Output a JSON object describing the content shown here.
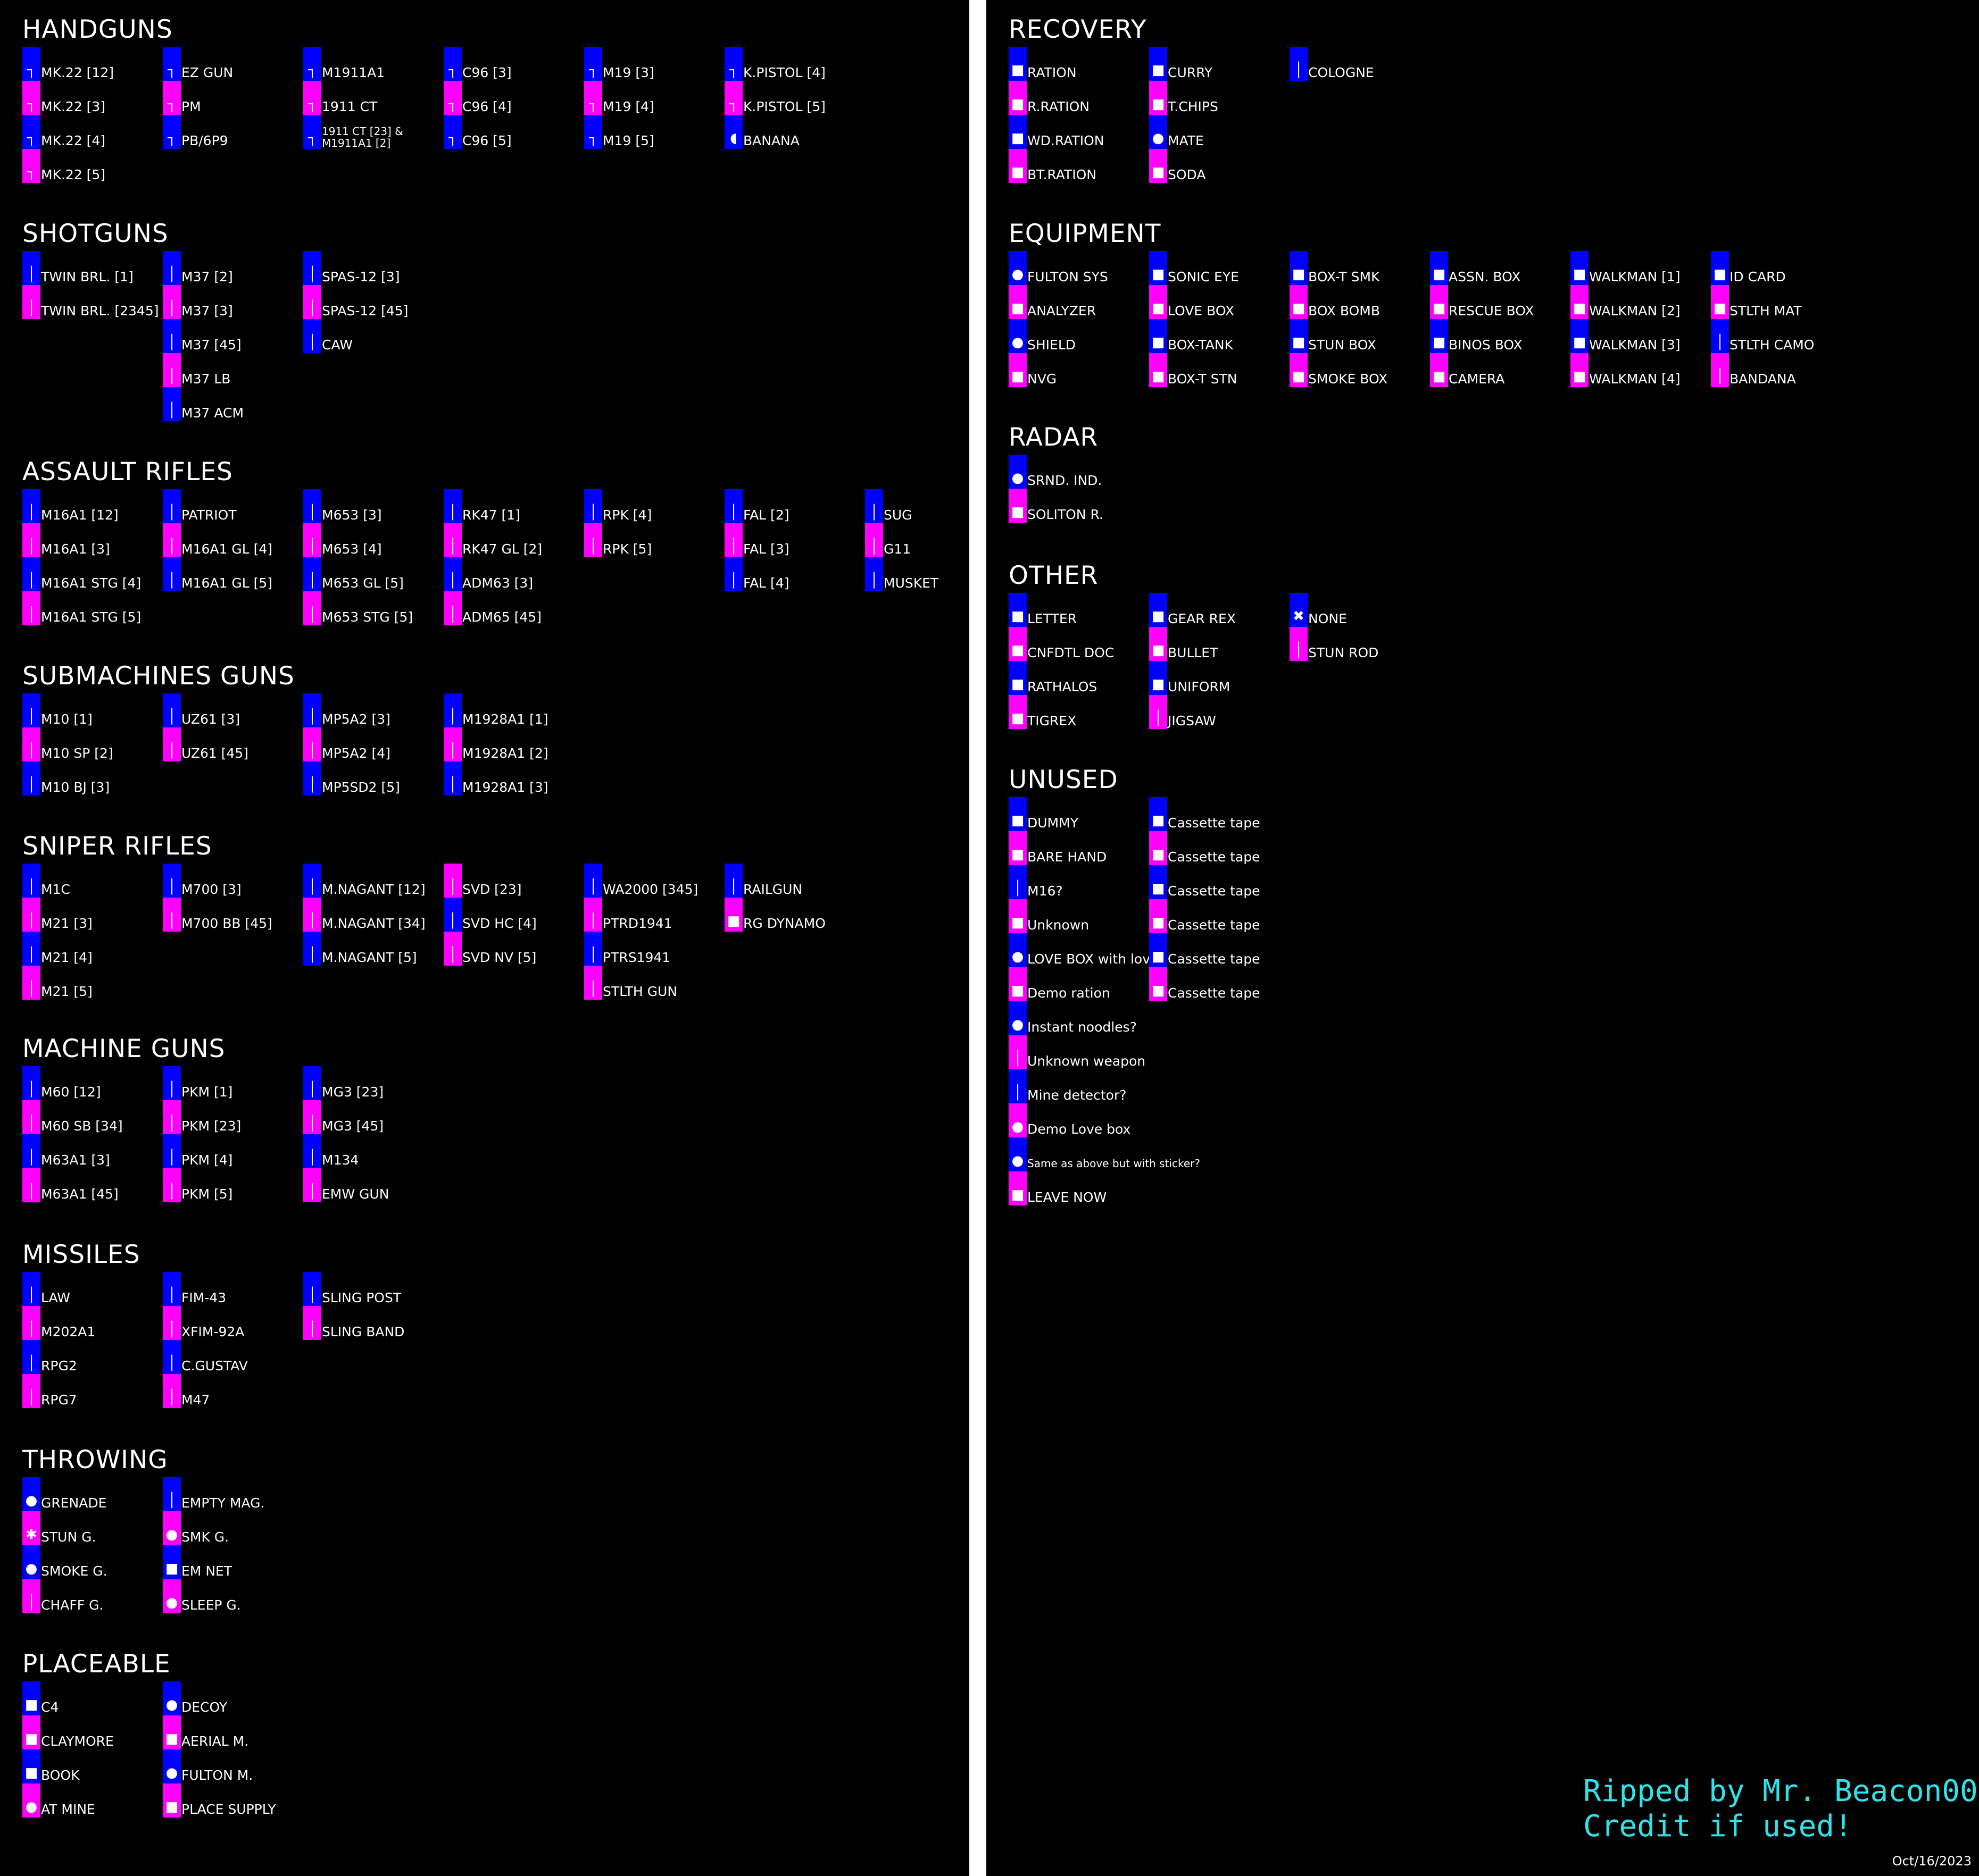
{
  "colors": {
    "blue": "#0000ff",
    "magenta": "#ff00ff",
    "background": "#000000",
    "divider": "#ffffff",
    "credit": "#2fe3ea"
  },
  "left": [
    {
      "title": "HANDGUNS",
      "columns": [
        [
          [
            "MK.22 [12]",
            "blue",
            "gun"
          ],
          [
            "MK.22 [3]",
            "magenta",
            "gun"
          ],
          [
            "MK.22 [4]",
            "blue",
            "gun"
          ],
          [
            "MK.22 [5]",
            "magenta",
            "gun"
          ]
        ],
        [
          [
            "EZ GUN",
            "blue",
            "gun"
          ],
          [
            "PM",
            "magenta",
            "gun"
          ],
          [
            "PB/6P9",
            "blue",
            "gun"
          ]
        ],
        [
          [
            "M1911A1",
            "blue",
            "gun"
          ],
          [
            "1911 CT",
            "magenta",
            "gun"
          ],
          [
            "1911 CT [23] & M1911A1 [2]",
            "blue",
            "gun"
          ]
        ],
        [
          [
            "C96 [3]",
            "blue",
            "gun"
          ],
          [
            "C96 [4]",
            "magenta",
            "gun"
          ],
          [
            "C96 [5]",
            "blue",
            "gun"
          ]
        ],
        [
          [
            "M19 [3]",
            "blue",
            "gun"
          ],
          [
            "M19 [4]",
            "magenta",
            "gun"
          ],
          [
            "M19 [5]",
            "blue",
            "gun"
          ]
        ],
        [
          [
            "K.PISTOL [4]",
            "blue",
            "gun"
          ],
          [
            "K.PISTOL [5]",
            "magenta",
            "gun"
          ],
          [
            "BANANA",
            "blue",
            "banana"
          ]
        ]
      ]
    },
    {
      "title": "SHOTGUNS",
      "columns": [
        [
          [
            "TWIN BRL. [1]",
            "blue",
            "rifle"
          ],
          [
            "TWIN BRL. [2345]",
            "magenta",
            "rifle"
          ]
        ],
        [
          [
            "M37 [2]",
            "blue",
            "rifle"
          ],
          [
            "M37 [3]",
            "magenta",
            "rifle"
          ],
          [
            "M37 [45]",
            "blue",
            "rifle"
          ],
          [
            "M37 LB",
            "magenta",
            "rifle"
          ],
          [
            "M37 ACM",
            "blue",
            "rifle"
          ]
        ],
        [
          [
            "SPAS-12 [3]",
            "blue",
            "rifle"
          ],
          [
            "SPAS-12 [45]",
            "magenta",
            "rifle"
          ],
          [
            "CAW",
            "blue",
            "rifle"
          ]
        ]
      ]
    },
    {
      "title": "ASSAULT RIFLES",
      "columns": [
        [
          [
            "M16A1 [12]",
            "blue",
            "rifle"
          ],
          [
            "M16A1 [3]",
            "magenta",
            "rifle"
          ],
          [
            "M16A1 STG [4]",
            "blue",
            "rifle"
          ],
          [
            "M16A1 STG [5]",
            "magenta",
            "rifle"
          ]
        ],
        [
          [
            "PATRIOT",
            "blue",
            "rifle"
          ],
          [
            "M16A1 GL [4]",
            "magenta",
            "rifle"
          ],
          [
            "M16A1 GL [5]",
            "blue",
            "rifle"
          ]
        ],
        [
          [
            "M653 [3]",
            "blue",
            "rifle"
          ],
          [
            "M653 [4]",
            "magenta",
            "rifle"
          ],
          [
            "M653 GL [5]",
            "blue",
            "rifle"
          ],
          [
            "M653 STG [5]",
            "magenta",
            "rifle"
          ]
        ],
        [
          [
            "RK47 [1]",
            "blue",
            "rifle"
          ],
          [
            "RK47 GL [2]",
            "magenta",
            "rifle"
          ],
          [
            "ADM63 [3]",
            "blue",
            "rifle"
          ],
          [
            "ADM65 [45]",
            "magenta",
            "rifle"
          ]
        ],
        [
          [
            "RPK [4]",
            "blue",
            "rifle"
          ],
          [
            "RPK [5]",
            "magenta",
            "rifle"
          ]
        ],
        [
          [
            "FAL [2]",
            "blue",
            "rifle"
          ],
          [
            "FAL [3]",
            "magenta",
            "rifle"
          ],
          [
            "FAL [4]",
            "blue",
            "rifle"
          ]
        ],
        [
          [
            "SUG",
            "blue",
            "rifle"
          ],
          [
            "G11",
            "magenta",
            "rifle"
          ],
          [
            "MUSKET",
            "blue",
            "rifle"
          ]
        ]
      ]
    },
    {
      "title": "SUBMACHINES GUNS",
      "columns": [
        [
          [
            "M10 [1]",
            "blue",
            "rifle"
          ],
          [
            "M10 SP [2]",
            "magenta",
            "rifle"
          ],
          [
            "M10 BJ [3]",
            "blue",
            "rifle"
          ]
        ],
        [
          [
            "UZ61 [3]",
            "blue",
            "rifle"
          ],
          [
            "UZ61 [45]",
            "magenta",
            "rifle"
          ]
        ],
        [
          [
            "MP5A2 [3]",
            "blue",
            "rifle"
          ],
          [
            "MP5A2 [4]",
            "magenta",
            "rifle"
          ],
          [
            "MP5SD2 [5]",
            "blue",
            "rifle"
          ]
        ],
        [
          [
            "M1928A1 [1]",
            "blue",
            "rifle"
          ],
          [
            "M1928A1 [2]",
            "magenta",
            "rifle"
          ],
          [
            "M1928A1 [3]",
            "blue",
            "rifle"
          ]
        ]
      ]
    },
    {
      "title": "SNIPER RIFLES",
      "columns": [
        [
          [
            "M1C",
            "blue",
            "rifle"
          ],
          [
            "M21 [3]",
            "magenta",
            "rifle"
          ],
          [
            "M21 [4]",
            "blue",
            "rifle"
          ],
          [
            "M21 [5]",
            "magenta",
            "rifle"
          ]
        ],
        [
          [
            "M700 [3]",
            "blue",
            "rifle"
          ],
          [
            "M700 BB [45]",
            "magenta",
            "rifle"
          ]
        ],
        [
          [
            "M.NAGANT [12]",
            "blue",
            "rifle"
          ],
          [
            "M.NAGANT [34]",
            "magenta",
            "rifle"
          ],
          [
            "M.NAGANT [5]",
            "blue",
            "rifle"
          ]
        ],
        [
          [
            "SVD [23]",
            "magenta",
            "rifle"
          ],
          [
            "SVD HC [4]",
            "blue",
            "rifle"
          ],
          [
            "SVD NV [5]",
            "magenta",
            "rifle"
          ]
        ],
        [
          [
            "WA2000 [345]",
            "blue",
            "rifle"
          ],
          [
            "PTRD1941",
            "magenta",
            "rifle"
          ],
          [
            "PTRS1941",
            "blue",
            "rifle"
          ],
          [
            "STLTH GUN",
            "magenta",
            "rifle"
          ]
        ],
        [
          [
            "RAILGUN",
            "blue",
            "rifle"
          ],
          [
            "RG DYNAMO",
            "magenta",
            "box"
          ]
        ]
      ]
    },
    {
      "title": "MACHINE GUNS",
      "columns": [
        [
          [
            "M60 [12]",
            "blue",
            "rifle"
          ],
          [
            "M60 SB [34]",
            "magenta",
            "rifle"
          ],
          [
            "M63A1 [3]",
            "blue",
            "rifle"
          ],
          [
            "M63A1 [45]",
            "magenta",
            "rifle"
          ]
        ],
        [
          [
            "PKM [1]",
            "blue",
            "rifle"
          ],
          [
            "PKM [23]",
            "magenta",
            "rifle"
          ],
          [
            "PKM [4]",
            "blue",
            "rifle"
          ],
          [
            "PKM [5]",
            "magenta",
            "rifle"
          ]
        ],
        [
          [
            "MG3 [23]",
            "blue",
            "rifle"
          ],
          [
            "MG3 [45]",
            "magenta",
            "rifle"
          ],
          [
            "M134",
            "blue",
            "rifle"
          ],
          [
            "EMW GUN",
            "magenta",
            "rifle"
          ]
        ]
      ]
    },
    {
      "title": "MISSILES",
      "columns": [
        [
          [
            "LAW",
            "blue",
            "rifle"
          ],
          [
            "M202A1",
            "magenta",
            "rifle"
          ],
          [
            "RPG2",
            "blue",
            "rifle"
          ],
          [
            "RPG7",
            "magenta",
            "rifle"
          ]
        ],
        [
          [
            "FIM-43",
            "blue",
            "rifle"
          ],
          [
            "XFIM-92A",
            "magenta",
            "rifle"
          ],
          [
            "C.GUSTAV",
            "blue",
            "rifle"
          ],
          [
            "M47",
            "magenta",
            "rifle"
          ]
        ],
        [
          [
            "SLING POST",
            "blue",
            "rifle"
          ],
          [
            "SLING BAND",
            "magenta",
            "rifle"
          ]
        ]
      ]
    },
    {
      "title": "THROWING",
      "columns": [
        [
          [
            "GRENADE",
            "blue",
            "round"
          ],
          [
            "STUN G.",
            "magenta",
            "spark"
          ],
          [
            "SMOKE G.",
            "blue",
            "round"
          ],
          [
            "CHAFF G.",
            "magenta",
            "rifle"
          ]
        ],
        [
          [
            "EMPTY MAG.",
            "blue",
            "rifle"
          ],
          [
            "SMK G.",
            "magenta",
            "round"
          ],
          [
            "EM NET",
            "blue",
            "box"
          ],
          [
            "SLEEP G.",
            "magenta",
            "round"
          ]
        ]
      ]
    },
    {
      "title": "PLACEABLE",
      "columns": [
        [
          [
            "C4",
            "blue",
            "box"
          ],
          [
            "CLAYMORE",
            "magenta",
            "box"
          ],
          [
            "BOOK",
            "blue",
            "box"
          ],
          [
            "AT MINE",
            "magenta",
            "round"
          ]
        ],
        [
          [
            "DECOY",
            "blue",
            "round"
          ],
          [
            "AERIAL M.",
            "magenta",
            "box"
          ],
          [
            "FULTON M.",
            "blue",
            "round"
          ],
          [
            "PLACE SUPPLY",
            "magenta",
            "box"
          ]
        ]
      ]
    }
  ],
  "right": [
    {
      "title": "RECOVERY",
      "columns": [
        [
          [
            "RATION",
            "blue",
            "box"
          ],
          [
            "R.RATION",
            "magenta",
            "box"
          ],
          [
            "WD.RATION",
            "blue",
            "box"
          ],
          [
            "BT.RATION",
            "magenta",
            "box"
          ]
        ],
        [
          [
            "CURRY",
            "blue",
            "box"
          ],
          [
            "T.CHIPS",
            "magenta",
            "box"
          ],
          [
            "MATE",
            "blue",
            "round"
          ],
          [
            "SODA",
            "magenta",
            "box"
          ]
        ],
        [
          [
            "COLOGNE",
            "blue",
            "rifle"
          ]
        ]
      ]
    },
    {
      "title": "EQUIPMENT",
      "columns": [
        [
          [
            "FULTON SYS",
            "blue",
            "round"
          ],
          [
            "ANALYZER",
            "magenta",
            "box"
          ],
          [
            "SHIELD",
            "blue",
            "round"
          ],
          [
            "NVG",
            "magenta",
            "box"
          ]
        ],
        [
          [
            "SONIC EYE",
            "blue",
            "box"
          ],
          [
            "LOVE BOX",
            "magenta",
            "box"
          ],
          [
            "BOX-TANK",
            "blue",
            "box"
          ],
          [
            "BOX-T STN",
            "magenta",
            "box"
          ]
        ],
        [
          [
            "BOX-T SMK",
            "blue",
            "box"
          ],
          [
            "BOX BOMB",
            "magenta",
            "box"
          ],
          [
            "STUN BOX",
            "blue",
            "box"
          ],
          [
            "SMOKE BOX",
            "magenta",
            "box"
          ]
        ],
        [
          [
            "ASSN. BOX",
            "blue",
            "box"
          ],
          [
            "RESCUE BOX",
            "magenta",
            "box"
          ],
          [
            "BINOS BOX",
            "blue",
            "box"
          ],
          [
            "CAMERA",
            "magenta",
            "box"
          ]
        ],
        [
          [
            "WALKMAN [1]",
            "blue",
            "box"
          ],
          [
            "WALKMAN [2]",
            "magenta",
            "box"
          ],
          [
            "WALKMAN [3]",
            "blue",
            "box"
          ],
          [
            "WALKMAN [4]",
            "magenta",
            "box"
          ]
        ],
        [
          [
            "ID CARD",
            "blue",
            "box"
          ],
          [
            "STLTH MAT",
            "magenta",
            "box"
          ],
          [
            "STLTH CAMO",
            "blue",
            "rifle"
          ],
          [
            "BANDANA",
            "magenta",
            "rifle"
          ]
        ]
      ]
    },
    {
      "title": "RADAR",
      "columns": [
        [
          [
            "SRND. IND.",
            "blue",
            "round"
          ],
          [
            "SOLITON R.",
            "magenta",
            "box"
          ]
        ]
      ]
    },
    {
      "title": "OTHER",
      "columns": [
        [
          [
            "LETTER",
            "blue",
            "box"
          ],
          [
            "CNFDTL DOC",
            "magenta",
            "box"
          ],
          [
            "RATHALOS",
            "blue",
            "box"
          ],
          [
            "TIGREX",
            "magenta",
            "box"
          ]
        ],
        [
          [
            "GEAR REX",
            "blue",
            "box"
          ],
          [
            "BULLET",
            "magenta",
            "box"
          ],
          [
            "UNIFORM",
            "blue",
            "box"
          ],
          [
            "JIGSAW",
            "magenta",
            "rifle"
          ]
        ],
        [
          [
            "NONE",
            "blue",
            "x"
          ],
          [
            "STUN ROD",
            "magenta",
            "rifle"
          ]
        ]
      ]
    },
    {
      "title": "UNUSED",
      "columns": [
        [
          [
            "DUMMY",
            "blue",
            "box"
          ],
          [
            "BARE HAND",
            "magenta",
            "box"
          ],
          [
            "M16?",
            "blue",
            "rifle"
          ],
          [
            "Unknown",
            "magenta",
            "box"
          ],
          [
            "LOVE BOX with love",
            "blue",
            "round"
          ],
          [
            "Demo ration",
            "magenta",
            "box"
          ],
          [
            "Instant noodles?",
            "blue",
            "round"
          ],
          [
            "Unknown weapon",
            "magenta",
            "rifle"
          ],
          [
            "Mine detector?",
            "blue",
            "rifle"
          ],
          [
            "Demo Love box",
            "magenta",
            "round"
          ],
          [
            "Same as above but with sticker?",
            "blue",
            "round"
          ],
          [
            "LEAVE NOW",
            "magenta",
            "box"
          ]
        ],
        [
          [
            "Cassette tape",
            "blue",
            "box"
          ],
          [
            "Cassette tape",
            "magenta",
            "box"
          ],
          [
            "Cassette tape",
            "blue",
            "box"
          ],
          [
            "Cassette tape",
            "magenta",
            "box"
          ],
          [
            "Cassette tape",
            "blue",
            "box"
          ],
          [
            "Cassette tape",
            "magenta",
            "box"
          ]
        ]
      ]
    }
  ],
  "credit": {
    "line1": "Ripped by Mr. Beacon00",
    "line2": "Credit if used!"
  },
  "date": "Oct/16/2023"
}
